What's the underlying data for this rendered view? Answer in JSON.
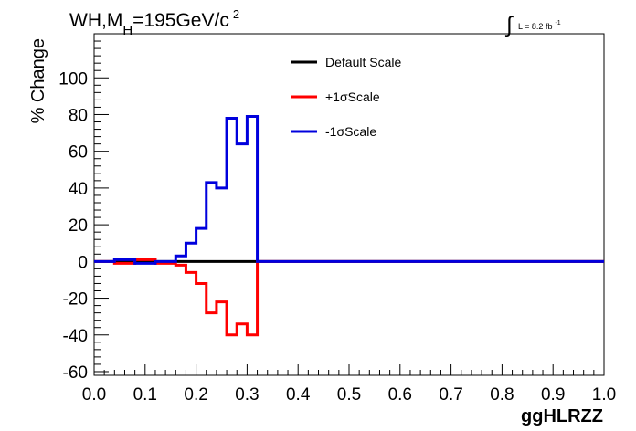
{
  "chart_data": {
    "type": "line",
    "title": {
      "main": "WH,M",
      "subscript": "H",
      "rest": "=195GeV/c",
      "superscript": "2"
    },
    "luminosity": {
      "symbol": "∫",
      "label": "L = 8.2 fb",
      "superscript": "-1"
    },
    "xlabel": "ggHLRZZ",
    "ylabel": "% Change",
    "xlim": [
      0.0,
      1.0
    ],
    "ylim": [
      -62,
      124
    ],
    "x_ticks": [
      0.0,
      0.1,
      0.2,
      0.3,
      0.4,
      0.5,
      0.6,
      0.7,
      0.8,
      0.9,
      1.0
    ],
    "x_tick_labels": [
      "0.0",
      "0.1",
      "0.2",
      "0.3",
      "0.4",
      "0.5",
      "0.6",
      "0.7",
      "0.8",
      "0.9",
      "1.0"
    ],
    "y_ticks": [
      -60,
      -40,
      -20,
      0,
      20,
      40,
      60,
      80,
      100
    ],
    "y_tick_labels": [
      "-60",
      "-40",
      "-20",
      "0",
      "20",
      "40",
      "60",
      "80",
      "100"
    ],
    "grid": false,
    "legend_position": "top-center",
    "bin_edges": [
      0.0,
      0.04,
      0.08,
      0.12,
      0.16,
      0.18,
      0.2,
      0.22,
      0.24,
      0.26,
      0.28,
      0.3,
      0.32,
      1.0
    ],
    "series": [
      {
        "name": "Default Scale",
        "color": "#000000",
        "values": [
          0,
          0,
          0,
          0,
          0,
          0,
          0,
          0,
          0,
          0,
          0,
          0,
          0
        ]
      },
      {
        "name": "+1σScale",
        "color": "#ff0000",
        "values": [
          0,
          -1,
          1,
          -1,
          -2,
          -6,
          -12,
          -28,
          -22,
          -40,
          -34,
          -40,
          0
        ]
      },
      {
        "name": "-1σScale",
        "color": "#0000dd",
        "values": [
          0,
          1,
          -1,
          0,
          3,
          10,
          18,
          43,
          40,
          78,
          64,
          79,
          0
        ]
      }
    ]
  }
}
